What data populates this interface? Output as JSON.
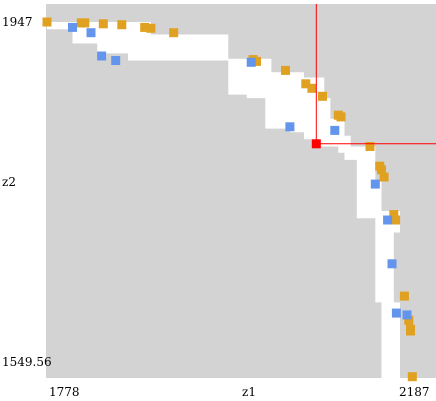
{
  "chart_data": {
    "type": "scatter",
    "xlabel": "z1",
    "ylabel": "z2",
    "x_tick_labels": [
      "1778",
      "z1",
      "2187"
    ],
    "y_tick_labels": [
      "1947",
      "z2",
      "1549.56"
    ],
    "xlim": [
      1778,
      2187
    ],
    "ylim": [
      1549.56,
      1947
    ],
    "grid": false,
    "colors": {
      "plot_background": "#d3d3d3",
      "region": "#ffffff",
      "series_a": "#e0a020",
      "series_b": "#6495ed",
      "selected_point": "#ff0000",
      "crosshair": "#ff0000"
    },
    "region_polygon": [
      [
        1778,
        1947
      ],
      [
        1896,
        1947
      ],
      [
        1896,
        1933
      ],
      [
        1984,
        1933
      ],
      [
        1984,
        1906
      ],
      [
        2033,
        1906
      ],
      [
        2033,
        1891
      ],
      [
        2070,
        1891
      ],
      [
        2070,
        1885
      ],
      [
        2093,
        1885
      ],
      [
        2093,
        1862
      ],
      [
        2100,
        1862
      ],
      [
        2100,
        1839
      ],
      [
        2116,
        1839
      ],
      [
        2116,
        1820
      ],
      [
        2123,
        1820
      ],
      [
        2123,
        1808
      ],
      [
        2151,
        1808
      ],
      [
        2151,
        1770
      ],
      [
        2158,
        1770
      ],
      [
        2158,
        1736
      ],
      [
        2179,
        1736
      ],
      [
        2179,
        1712
      ],
      [
        2172,
        1712
      ],
      [
        2172,
        1634
      ],
      [
        2179,
        1634
      ],
      [
        2179,
        1549.56
      ],
      [
        2158,
        1549.56
      ],
      [
        2158,
        1634
      ],
      [
        2151,
        1634
      ],
      [
        2151,
        1728
      ],
      [
        2130,
        1728
      ],
      [
        2130,
        1793
      ],
      [
        2116,
        1793
      ],
      [
        2116,
        1801
      ],
      [
        2109,
        1801
      ],
      [
        2109,
        1808
      ],
      [
        2088,
        1808
      ],
      [
        2088,
        1816
      ],
      [
        2070,
        1816
      ],
      [
        2070,
        1824
      ],
      [
        2054,
        1824
      ],
      [
        2054,
        1828
      ],
      [
        2026,
        1828
      ],
      [
        2026,
        1862
      ],
      [
        2005,
        1862
      ],
      [
        2005,
        1866
      ],
      [
        1984,
        1866
      ],
      [
        1984,
        1904
      ],
      [
        1870,
        1904
      ],
      [
        1870,
        1912
      ],
      [
        1835,
        1912
      ],
      [
        1835,
        1923
      ],
      [
        1807,
        1923
      ],
      [
        1807,
        1939
      ],
      [
        1778,
        1939
      ]
    ],
    "series": [
      {
        "values": [
          [
            1778,
            1947
          ],
          [
            1817,
            1946
          ],
          [
            1821,
            1946
          ],
          [
            1842,
            1945
          ],
          [
            1863,
            1944
          ],
          [
            1889,
            1941
          ],
          [
            1896,
            1940
          ],
          [
            1922,
            1935
          ],
          [
            2012,
            1905
          ],
          [
            2016,
            1903
          ],
          [
            2049,
            1893
          ],
          [
            2072,
            1878
          ],
          [
            2079,
            1873
          ],
          [
            2091,
            1864
          ],
          [
            2109,
            1843
          ],
          [
            2112,
            1841
          ],
          [
            2145,
            1808
          ],
          [
            2156,
            1786
          ],
          [
            2158,
            1782
          ],
          [
            2161,
            1774
          ],
          [
            2172,
            1732
          ],
          [
            2174,
            1726
          ],
          [
            2184,
            1641
          ],
          [
            2189,
            1614
          ],
          [
            2191,
            1604
          ],
          [
            2191,
            1602
          ],
          [
            2193,
            1551
          ]
        ]
      },
      {
        "values": [
          [
            1807,
            1941
          ],
          [
            1828,
            1935
          ],
          [
            1840,
            1909
          ],
          [
            1856,
            1904
          ],
          [
            2010,
            1902
          ],
          [
            2054,
            1830
          ],
          [
            2105,
            1826
          ],
          [
            2151,
            1766
          ],
          [
            2165,
            1726
          ],
          [
            2170,
            1677
          ],
          [
            2175,
            1622
          ],
          [
            2187,
            1620
          ]
        ]
      }
    ],
    "selected_point": [
      2084,
      1811
    ]
  }
}
